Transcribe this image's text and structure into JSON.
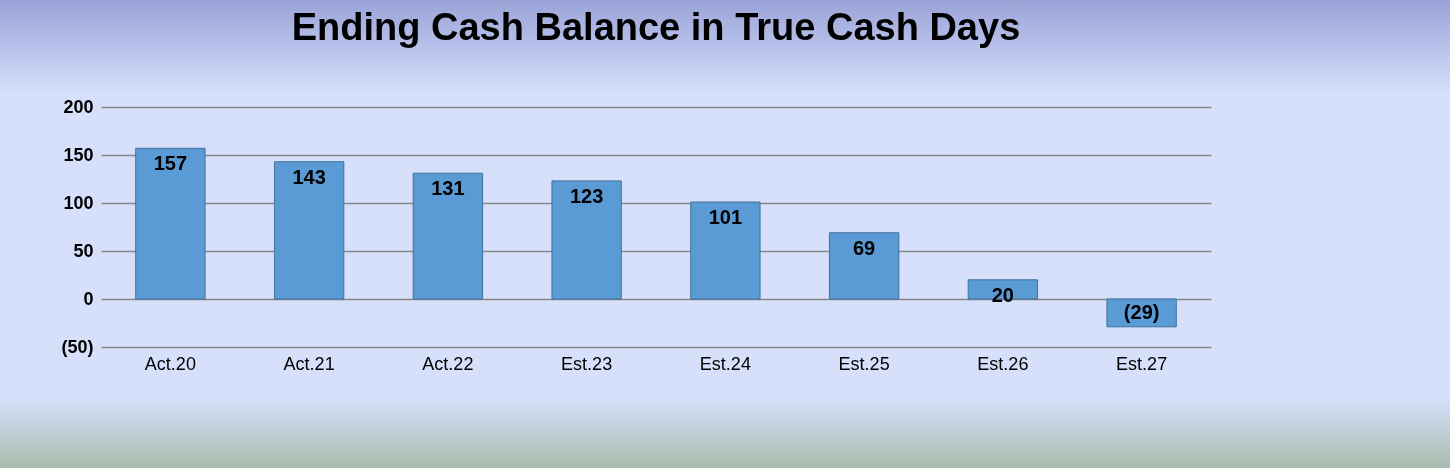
{
  "chart_data": {
    "type": "bar",
    "title": "Ending Cash Balance in True Cash Days",
    "categories": [
      "Act.20",
      "Act.21",
      "Act.22",
      "Est.23",
      "Est.24",
      "Est.25",
      "Est.26",
      "Est.27"
    ],
    "values": [
      157,
      143,
      131,
      123,
      101,
      69,
      20,
      -29
    ],
    "value_labels": [
      "157",
      "143",
      "131",
      "123",
      "101",
      "69",
      "20",
      "(29)"
    ],
    "color": "#5b9bd5",
    "ylim": [
      -50,
      200
    ],
    "yticks": [
      {
        "value": -50,
        "label": "(50)"
      },
      0,
      50,
      100,
      150,
      200
    ],
    "grid": "y"
  }
}
